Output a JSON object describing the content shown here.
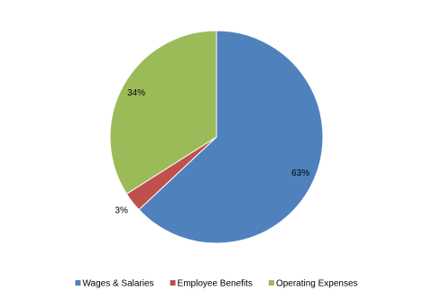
{
  "chart_data": {
    "type": "pie",
    "categories": [
      "Wages & Salaries",
      "Employee Benefits",
      "Operating Expenses"
    ],
    "series": [
      {
        "values": [
          63,
          3,
          34
        ],
        "value_labels": [
          "63%",
          "3%",
          "34%"
        ]
      }
    ],
    "colors": [
      "#4f81bd",
      "#c0504d",
      "#9bbb59"
    ],
    "legend": "bottom"
  }
}
